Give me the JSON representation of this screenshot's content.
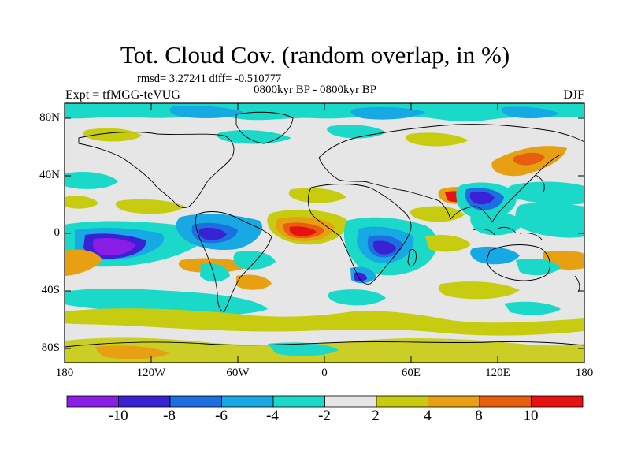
{
  "title": "Tot. Cloud Cov. (random overlap, in %)",
  "stats": "rmsd= 3.27241 diff= -0.510777",
  "experiment": "Expt = tfMGG-teVUG",
  "period": "0800kyr BP - 0800kyr BP",
  "season": "DJF",
  "lat_ticks": [
    "80N",
    "40N",
    "0",
    "40S",
    "80S"
  ],
  "lon_ticks": [
    "180",
    "120W",
    "60W",
    "0",
    "60E",
    "120E",
    "180"
  ],
  "colorbar": {
    "labels": [
      "-10",
      "-8",
      "-6",
      "-4",
      "-2",
      "2",
      "4",
      "8",
      "10"
    ],
    "colors": [
      "#8a1de6",
      "#3a22d4",
      "#1c6fe0",
      "#17a9e3",
      "#1bd9c8",
      "#e6e6e6",
      "#c8cc10",
      "#e6a012",
      "#e85d10",
      "#e61212"
    ]
  },
  "map_background": "#e6e6e6"
}
